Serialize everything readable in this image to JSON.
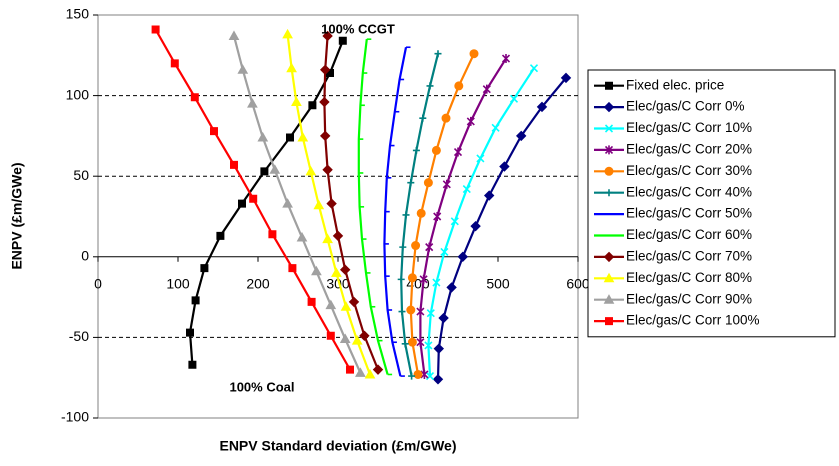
{
  "chart_data": {
    "type": "line",
    "x_label": "ENPV Standard deviation (£m/GWe)",
    "y_label": "ENPV (£m/GWe)",
    "annotations": [
      "100% CCGT",
      "100% Coal"
    ],
    "xlim": [
      0,
      600
    ],
    "ylim": [
      -100,
      150
    ],
    "xticks": [
      0,
      100,
      200,
      300,
      400,
      500,
      600
    ],
    "yticks": [
      -100,
      -50,
      0,
      50,
      100,
      150
    ],
    "grid": true,
    "legend": "right",
    "series": [
      {
        "name": "Fixed elec. price",
        "color": "#000000",
        "marker": "square",
        "x": [
          118,
          115,
          122,
          133,
          153,
          180,
          208,
          240,
          268,
          290,
          306
        ],
        "y": [
          -67,
          -47,
          -27,
          -7,
          13,
          33,
          53,
          74,
          94,
          114,
          134
        ]
      },
      {
        "name": "Elec/gas/C Corr 0%",
        "color": "#000080",
        "marker": "diamond",
        "x": [
          425,
          426,
          432,
          442,
          456,
          472,
          489,
          508,
          529,
          555,
          585
        ],
        "y": [
          -76,
          -57,
          -38,
          -19,
          0,
          19,
          38,
          56,
          75,
          93,
          111
        ]
      },
      {
        "name": "Elec/gas/C Corr 10%",
        "color": "#00ffff",
        "marker": "x",
        "x": [
          415,
          413,
          416,
          423,
          433,
          446,
          461,
          478,
          497,
          520,
          545
        ],
        "y": [
          -74,
          -55,
          -35,
          -16,
          3,
          22,
          42,
          61,
          80,
          98,
          117
        ]
      },
      {
        "name": "Elec/gas/C Corr 20%",
        "color": "#800080",
        "marker": "star",
        "x": [
          408,
          403,
          403,
          407,
          414,
          424,
          436,
          450,
          466,
          486,
          510
        ],
        "y": [
          -73,
          -53,
          -34,
          -14,
          6,
          25,
          45,
          65,
          84,
          104,
          123
        ]
      },
      {
        "name": "Elec/gas/C Corr 30%",
        "color": "#ff8000",
        "marker": "circle",
        "x": [
          400,
          393,
          391,
          393,
          397,
          404,
          413,
          423,
          435,
          451,
          470
        ],
        "y": [
          -73,
          -53,
          -33,
          -13,
          7,
          27,
          46,
          66,
          86,
          106,
          126
        ]
      },
      {
        "name": "Elec/gas/C Corr 40%",
        "color": "#008080",
        "marker": "plus",
        "x": [
          392,
          384,
          380,
          379,
          381,
          385,
          391,
          398,
          406,
          415,
          425
        ],
        "y": [
          -74,
          -54,
          -34,
          -14,
          6,
          26,
          46,
          66,
          86,
          106,
          126
        ]
      },
      {
        "name": "Elec/gas/C Corr 50%",
        "color": "#0000ff",
        "marker": "dash",
        "x": [
          378,
          368,
          362,
          359,
          358,
          359,
          361,
          365,
          371,
          377,
          385
        ],
        "y": [
          -74,
          -53,
          -33,
          -12,
          8,
          28,
          49,
          69,
          90,
          110,
          130
        ]
      },
      {
        "name": "Elec/gas/C Corr 60%",
        "color": "#00ff00",
        "marker": "dash",
        "x": [
          362,
          350,
          341,
          335,
          330,
          327,
          326,
          326,
          328,
          331,
          336
        ],
        "y": [
          -73,
          -52,
          -31,
          -10,
          11,
          31,
          52,
          73,
          94,
          114,
          135
        ]
      },
      {
        "name": "Elec/gas/C Corr 70%",
        "color": "#800000",
        "marker": "diamond",
        "x": [
          350,
          333,
          320,
          309,
          300,
          292,
          287,
          284,
          283,
          284,
          287
        ],
        "y": [
          -70,
          -49,
          -28,
          -8,
          13,
          33,
          54,
          75,
          96,
          116,
          137
        ]
      },
      {
        "name": "Elec/gas/C Corr 80%",
        "color": "#ffff00",
        "marker": "triangle",
        "x": [
          340,
          324,
          310,
          298,
          287,
          276,
          266,
          256,
          248,
          242,
          237
        ],
        "y": [
          -73,
          -52,
          -31,
          -10,
          11,
          32,
          53,
          74,
          96,
          117,
          138
        ]
      },
      {
        "name": "Elec/gas/C Corr 90%",
        "color": "#a0a0a0",
        "marker": "triangle",
        "x": [
          328,
          309,
          291,
          273,
          255,
          237,
          221,
          206,
          193,
          181,
          170
        ],
        "y": [
          -72,
          -51,
          -30,
          -9,
          12,
          33,
          54,
          74,
          95,
          116,
          137
        ]
      },
      {
        "name": "Elec/gas/C Corr 100%",
        "color": "#ff0000",
        "marker": "square",
        "x": [
          315,
          291,
          267,
          243,
          218,
          194,
          170,
          145,
          121,
          96,
          72
        ],
        "y": [
          -70,
          -49,
          -28,
          -7,
          14,
          36,
          57,
          78,
          99,
          120,
          141
        ]
      }
    ]
  }
}
